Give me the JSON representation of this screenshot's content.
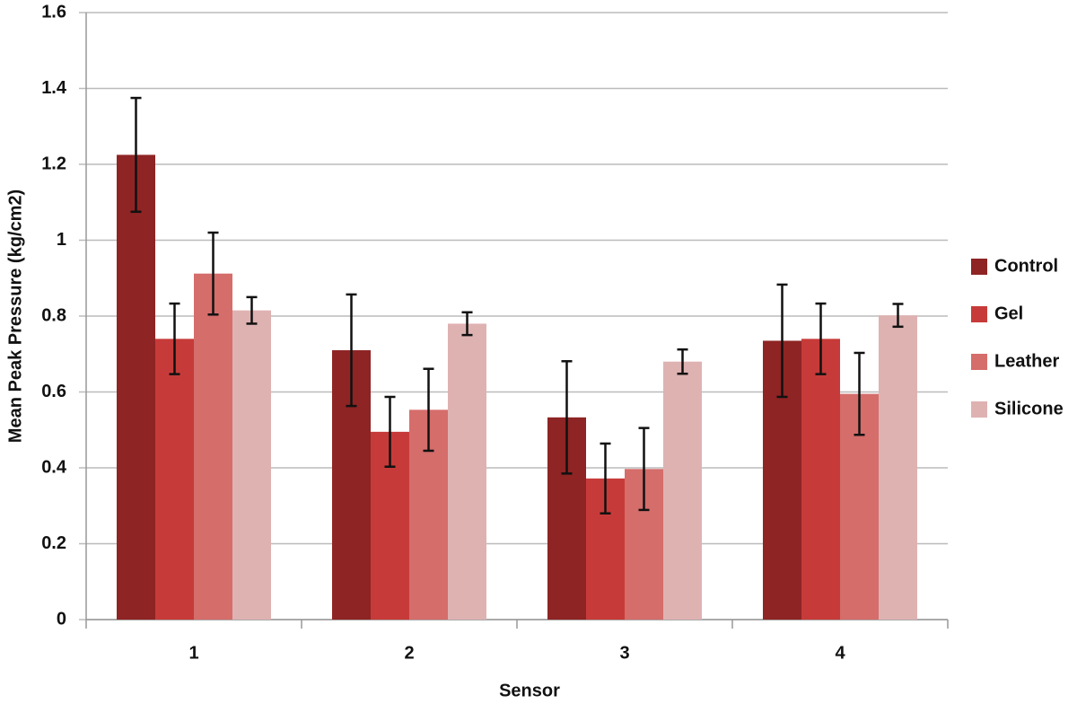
{
  "chart_data": {
    "type": "bar",
    "xlabel": "Sensor",
    "ylabel": "Mean Peak Pressure (kg/cm2)",
    "categories": [
      "1",
      "2",
      "3",
      "4"
    ],
    "series": [
      {
        "name": "Control",
        "color": "#8e2424",
        "values": [
          1.225,
          0.71,
          0.533,
          0.735
        ],
        "errors": [
          0.15,
          0.147,
          0.148,
          0.148
        ]
      },
      {
        "name": "Gel",
        "color": "#c63b39",
        "values": [
          0.74,
          0.495,
          0.372,
          0.74
        ],
        "errors": [
          0.093,
          0.092,
          0.092,
          0.093
        ]
      },
      {
        "name": "Leather",
        "color": "#d56d6b",
        "values": [
          0.912,
          0.553,
          0.397,
          0.595
        ],
        "errors": [
          0.108,
          0.108,
          0.108,
          0.108
        ]
      },
      {
        "name": "Silicone",
        "color": "#dfb2b2",
        "values": [
          0.815,
          0.78,
          0.68,
          0.802
        ],
        "errors": [
          0.035,
          0.03,
          0.032,
          0.03
        ]
      }
    ],
    "ylim": [
      0,
      1.6
    ],
    "yticks": [
      0,
      0.2,
      0.4,
      0.6,
      0.8,
      1,
      1.2,
      1.4,
      1.6
    ],
    "grid": true,
    "legend": "right"
  }
}
